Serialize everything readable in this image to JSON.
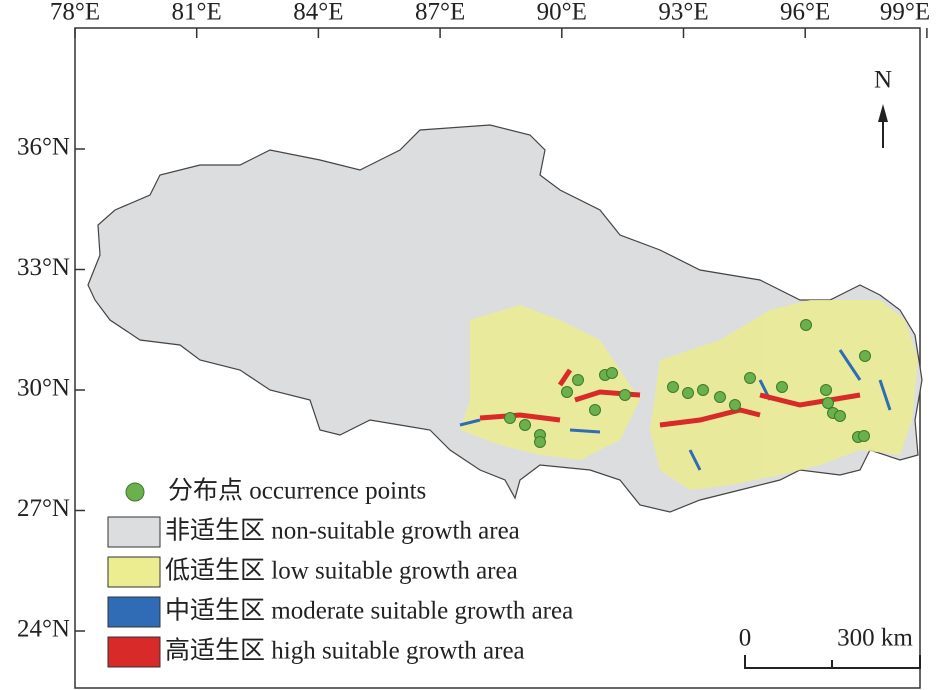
{
  "map": {
    "x_ticks": [
      "78°E",
      "81°E",
      "84°E",
      "87°E",
      "90°E",
      "93°E",
      "96°E",
      "99°E"
    ],
    "y_ticks": [
      "36°N",
      "33°N",
      "30°N",
      "27°N",
      "24°N"
    ],
    "north": "N",
    "legend": [
      {
        "label": "分布点 occurrence points"
      },
      {
        "label": "非适生区 non-suitable growth area"
      },
      {
        "label": "低适生区 low suitable growth area"
      },
      {
        "label": "中适生区 moderate suitable growth area"
      },
      {
        "label": "高适生区 high suitable growth area"
      }
    ],
    "scale_bar": {
      "start": "0",
      "end": "300 km"
    }
  }
}
